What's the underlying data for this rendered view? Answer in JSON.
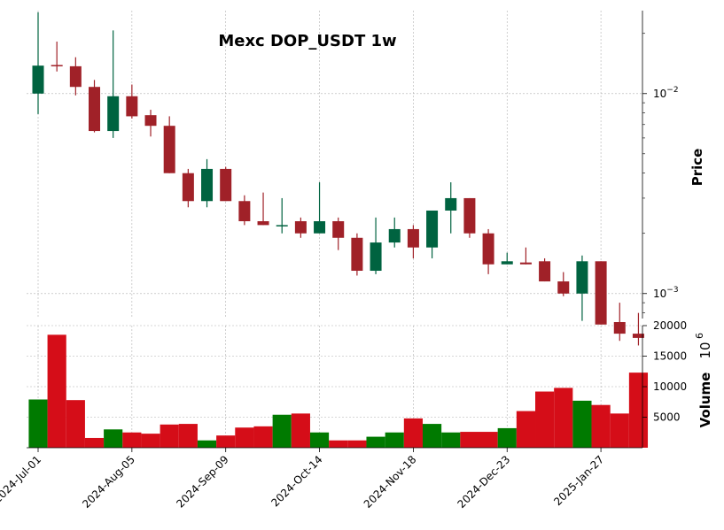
{
  "colors": {
    "up": "#006340",
    "down": "#a02128",
    "vol_up": "#007a00",
    "vol_down": "#d50d18"
  },
  "chart_data": {
    "type": "candlestick",
    "title": "Mexc DOP_USDT 1w",
    "price_label": "Price",
    "volume_label": "Volume",
    "volume_exponent_label": "10",
    "volume_exponent_power": "6",
    "price_scale": "log",
    "price_range": [
      0.00075,
      0.026
    ],
    "price_ticks": [
      {
        "label": "10",
        "exp": "−2",
        "value": 0.01
      },
      {
        "label": "10",
        "exp": "−3",
        "value": 0.001
      }
    ],
    "volume_range": [
      0,
      20000
    ],
    "volume_ticks": [
      {
        "label": "5000",
        "value": 5000
      },
      {
        "label": "10000",
        "value": 10000
      },
      {
        "label": "15000",
        "value": 15000
      },
      {
        "label": "20000",
        "value": 20000
      }
    ],
    "x_ticks": [
      {
        "label": "2024-Jul-01",
        "index": 0
      },
      {
        "label": "2024-Aug-05",
        "index": 5
      },
      {
        "label": "2024-Sep-09",
        "index": 10
      },
      {
        "label": "2024-Oct-14",
        "index": 15
      },
      {
        "label": "2024-Nov-18",
        "index": 20
      },
      {
        "label": "2024-Dec-23",
        "index": 25
      },
      {
        "label": "2025-Jan-27",
        "index": 30
      }
    ],
    "grid": true,
    "candles": [
      {
        "o": 0.01,
        "h": 0.0255,
        "l": 0.0079,
        "c": 0.0138,
        "v": 7900
      },
      {
        "o": 0.0139,
        "h": 0.0182,
        "l": 0.0129,
        "c": 0.0137,
        "v": 18500
      },
      {
        "o": 0.0137,
        "h": 0.0152,
        "l": 0.0098,
        "c": 0.0108,
        "v": 7800
      },
      {
        "o": 0.0108,
        "h": 0.0117,
        "l": 0.0064,
        "c": 0.0065,
        "v": 1600
      },
      {
        "o": 0.0065,
        "h": 0.0207,
        "l": 0.006,
        "c": 0.0097,
        "v": 3000
      },
      {
        "o": 0.0097,
        "h": 0.0111,
        "l": 0.0075,
        "c": 0.0077,
        "v": 2500
      },
      {
        "o": 0.0078,
        "h": 0.0083,
        "l": 0.0061,
        "c": 0.0069,
        "v": 2300
      },
      {
        "o": 0.0069,
        "h": 0.0077,
        "l": 0.004,
        "c": 0.004,
        "v": 3800
      },
      {
        "o": 0.004,
        "h": 0.0042,
        "l": 0.0027,
        "c": 0.0029,
        "v": 3900
      },
      {
        "o": 0.0029,
        "h": 0.0047,
        "l": 0.0027,
        "c": 0.0042,
        "v": 1200
      },
      {
        "o": 0.0042,
        "h": 0.0043,
        "l": 0.0029,
        "c": 0.0029,
        "v": 2000
      },
      {
        "o": 0.0029,
        "h": 0.0031,
        "l": 0.0022,
        "c": 0.0023,
        "v": 3300
      },
      {
        "o": 0.0023,
        "h": 0.0032,
        "l": 0.0022,
        "c": 0.0022,
        "v": 3500
      },
      {
        "o": 0.0022,
        "h": 0.003,
        "l": 0.002,
        "c": 0.0022,
        "v": 5400
      },
      {
        "o": 0.0023,
        "h": 0.0024,
        "l": 0.0019,
        "c": 0.002,
        "v": 5600
      },
      {
        "o": 0.002,
        "h": 0.0036,
        "l": 0.002,
        "c": 0.0023,
        "v": 2500
      },
      {
        "o": 0.0023,
        "h": 0.0024,
        "l": 0.00165,
        "c": 0.0019,
        "v": 1200
      },
      {
        "o": 0.0019,
        "h": 0.002,
        "l": 0.00123,
        "c": 0.0013,
        "v": 1200
      },
      {
        "o": 0.0013,
        "h": 0.0024,
        "l": 0.00125,
        "c": 0.0018,
        "v": 1800
      },
      {
        "o": 0.0018,
        "h": 0.0024,
        "l": 0.0017,
        "c": 0.0021,
        "v": 2500
      },
      {
        "o": 0.0021,
        "h": 0.0022,
        "l": 0.0015,
        "c": 0.0017,
        "v": 4800
      },
      {
        "o": 0.0017,
        "h": 0.0026,
        "l": 0.0015,
        "c": 0.0026,
        "v": 3900
      },
      {
        "o": 0.0026,
        "h": 0.0036,
        "l": 0.002,
        "c": 0.003,
        "v": 2500
      },
      {
        "o": 0.003,
        "h": 0.003,
        "l": 0.0019,
        "c": 0.002,
        "v": 2600
      },
      {
        "o": 0.002,
        "h": 0.0021,
        "l": 0.00125,
        "c": 0.0014,
        "v": 2600
      },
      {
        "o": 0.0014,
        "h": 0.0016,
        "l": 0.0014,
        "c": 0.00145,
        "v": 3200
      },
      {
        "o": 0.00143,
        "h": 0.0017,
        "l": 0.0014,
        "c": 0.0014,
        "v": 6000
      },
      {
        "o": 0.00145,
        "h": 0.0015,
        "l": 0.00115,
        "c": 0.00115,
        "v": 9200
      },
      {
        "o": 0.00115,
        "h": 0.00128,
        "l": 0.00097,
        "c": 0.001,
        "v": 9800
      },
      {
        "o": 0.001,
        "h": 0.00155,
        "l": 0.00073,
        "c": 0.00145,
        "v": 7700
      },
      {
        "o": 0.00145,
        "h": 0.00145,
        "l": 0.0007,
        "c": 0.0007,
        "v": 7000
      },
      {
        "o": 0.00072,
        "h": 0.0009,
        "l": 0.00058,
        "c": 0.00063,
        "v": 5600
      },
      {
        "o": 0.00063,
        "h": 0.0008,
        "l": 0.00055,
        "c": 0.0006,
        "v": 12300
      }
    ]
  }
}
